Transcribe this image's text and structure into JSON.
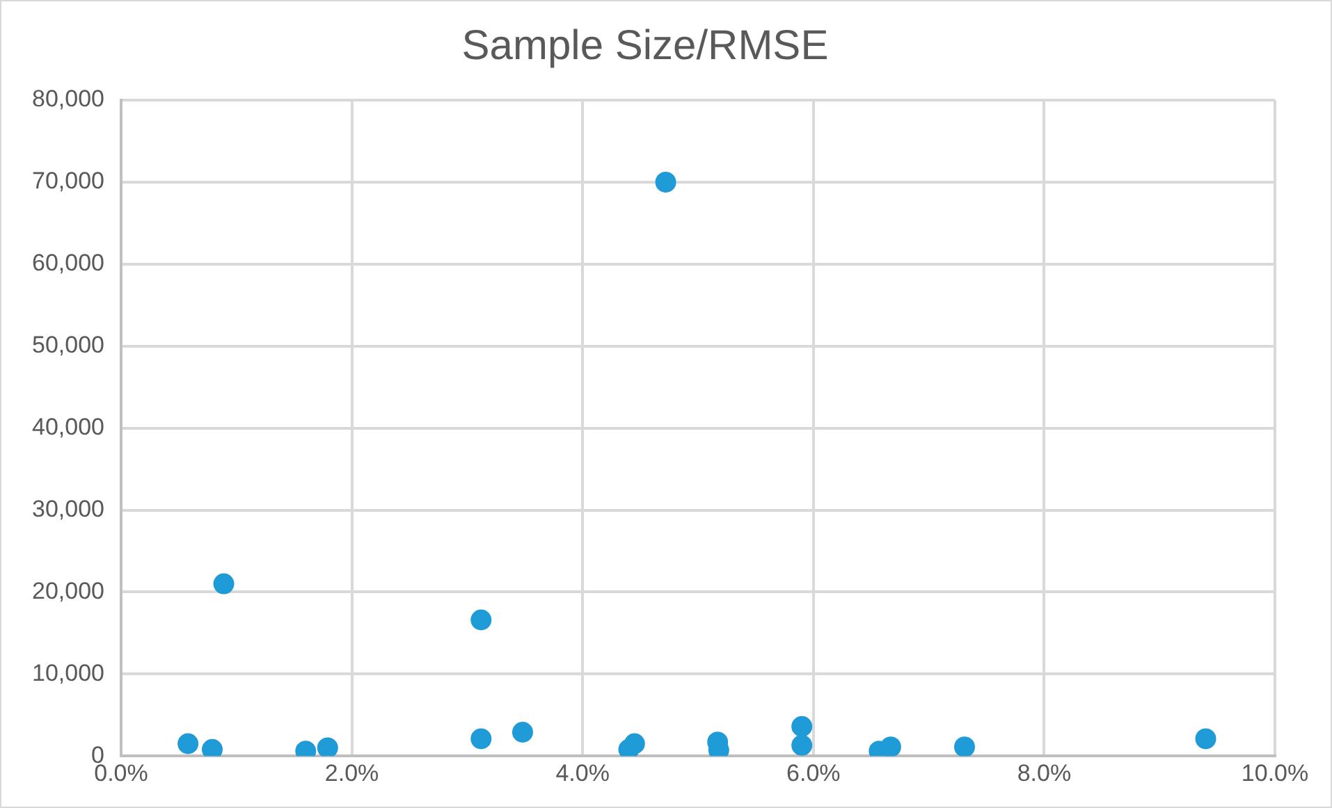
{
  "chart_data": {
    "type": "scatter",
    "title": "Sample Size/RMSE",
    "marker": "circle",
    "grid": true,
    "legend": false,
    "xlim": [
      0,
      10
    ],
    "xticks": [
      {
        "value": 0,
        "label": "0.0%"
      },
      {
        "value": 2,
        "label": "2.0%"
      },
      {
        "value": 4,
        "label": "4.0%"
      },
      {
        "value": 6,
        "label": "6.0%"
      },
      {
        "value": 8,
        "label": "8.0%"
      },
      {
        "value": 10,
        "label": "10.0%"
      }
    ],
    "ylim": [
      0,
      80000
    ],
    "yticks": [
      0,
      {
        "value": 10000,
        "label": "10,000"
      },
      {
        "value": 20000,
        "label": "20,000"
      },
      {
        "value": 30000,
        "label": "30,000"
      },
      {
        "value": 40000,
        "label": "40,000"
      },
      {
        "value": 50000,
        "label": "50,000"
      },
      {
        "value": 60000,
        "label": "60,000"
      },
      {
        "value": 70000,
        "label": "70,000"
      },
      {
        "value": 80000,
        "label": "80,000"
      }
    ],
    "series": [
      {
        "color": "#1f9bd7",
        "x": [
          0.58,
          0.79,
          0.89,
          1.6,
          1.79,
          3.12,
          3.12,
          3.48,
          4.4,
          4.45,
          4.72,
          5.17,
          5.18,
          5.9,
          5.9,
          6.57,
          6.67,
          7.31,
          9.4
        ],
        "values": [
          1500,
          800,
          21000,
          600,
          1000,
          16600,
          2100,
          2900,
          800,
          1500,
          70000,
          1700,
          700,
          3600,
          1300,
          600,
          1100,
          1100,
          2100
        ]
      }
    ]
  }
}
